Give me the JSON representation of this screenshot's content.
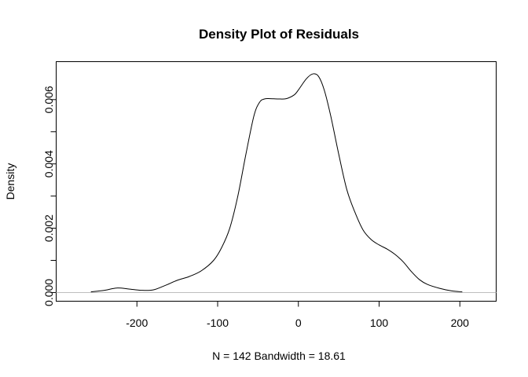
{
  "chart_data": {
    "type": "line",
    "title": "Density Plot of Residuals",
    "xlabel": "N = 142   Bandwidth = 18.61",
    "ylabel": "Density",
    "xlim": [
      -300,
      245
    ],
    "ylim": [
      -0.00027,
      0.00718
    ],
    "x_ticks": [
      -200,
      -100,
      0,
      100,
      200
    ],
    "x_tick_labels": [
      "-200",
      "-100",
      "0",
      "100",
      "200"
    ],
    "y_ticks": [
      0.0,
      0.002,
      0.004,
      0.006
    ],
    "y_tick_labels": [
      "0.000",
      "0.002",
      "0.004",
      "0.006"
    ],
    "zero_line": true,
    "zero_line_color": "#bebebe",
    "line_color": "#000000",
    "grid": false,
    "series": [
      {
        "x": [
          -257,
          -240,
          -225,
          -210,
          -195,
          -180,
          -165,
          -150,
          -135,
          -120,
          -105,
          -95,
          -85,
          -75,
          -65,
          -55,
          -48,
          -42,
          -35,
          -25,
          -15,
          -5,
          0,
          10,
          18,
          25,
          32,
          40,
          50,
          60,
          70,
          80,
          90,
          100,
          110,
          120,
          130,
          140,
          150,
          160,
          175,
          190,
          203
        ],
        "y": [
          2e-05,
          7e-05,
          0.00014,
          0.00011,
          7e-05,
          8e-05,
          0.00022,
          0.00038,
          0.0005,
          0.00068,
          0.001,
          0.0014,
          0.002,
          0.003,
          0.0043,
          0.0055,
          0.00592,
          0.00602,
          0.00603,
          0.00602,
          0.00603,
          0.00615,
          0.0063,
          0.00665,
          0.0068,
          0.00672,
          0.0063,
          0.0055,
          0.0043,
          0.0032,
          0.0025,
          0.00195,
          0.00165,
          0.00148,
          0.00135,
          0.00118,
          0.00095,
          0.00065,
          0.0004,
          0.00025,
          0.00013,
          5e-05,
          2e-05
        ]
      }
    ]
  }
}
